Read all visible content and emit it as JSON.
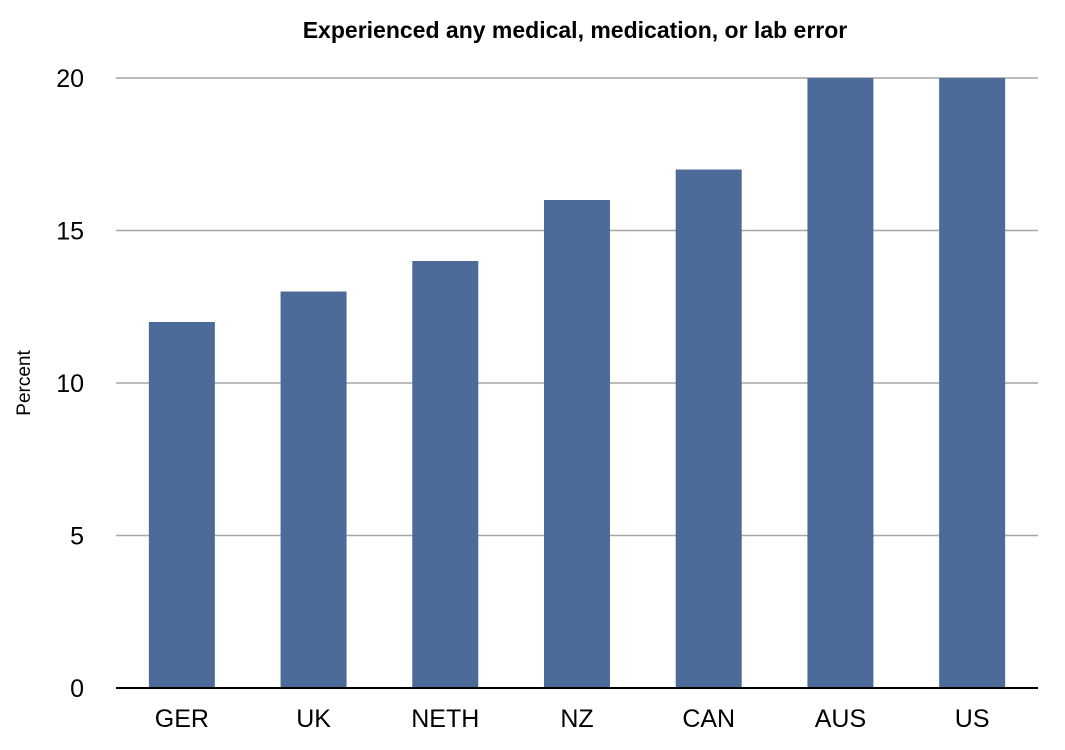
{
  "chart_data": {
    "type": "bar",
    "title": "Experienced any medical, medication, or lab error",
    "xlabel": "",
    "ylabel": "Percent",
    "categories": [
      "GER",
      "UK",
      "NETH",
      "NZ",
      "CAN",
      "AUS",
      "US"
    ],
    "values": [
      12,
      13,
      14,
      16,
      17,
      20,
      20
    ],
    "ylim": [
      0,
      20
    ],
    "yticks": [
      0,
      5,
      10,
      15,
      20
    ],
    "grid": true,
    "legend": "none",
    "bar_color": "#4d6b99",
    "grid_color": "#a6a6a6"
  }
}
